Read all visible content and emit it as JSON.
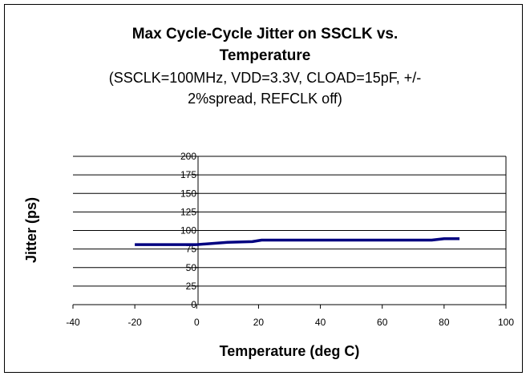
{
  "chart_data": {
    "type": "line",
    "title": [
      "Max Cycle-Cycle Jitter on SSCLK vs.",
      "Temperature"
    ],
    "subtitle": [
      "(SSCLK=100MHz, VDD=3.3V, CLOAD=15pF, +/-",
      "2%spread, REFCLK off)"
    ],
    "xlabel": "Temperature (deg C)",
    "ylabel": "Jitter (ps)",
    "xlim": [
      -40,
      100
    ],
    "ylim": [
      0,
      200
    ],
    "x_ticks": [
      -40,
      -20,
      0,
      20,
      40,
      60,
      80,
      100
    ],
    "y_ticks": [
      0,
      25,
      50,
      75,
      100,
      125,
      150,
      175,
      200
    ],
    "grid": "horizontal",
    "series": [
      {
        "color": "#000080",
        "x": [
          -20,
          0,
          10,
          18,
          21,
          40,
          60,
          76,
          80,
          85
        ],
        "y": [
          81,
          81,
          84,
          85,
          87,
          87,
          87,
          87,
          89,
          89
        ]
      }
    ]
  }
}
